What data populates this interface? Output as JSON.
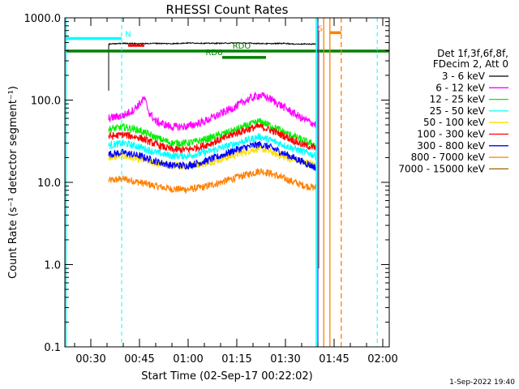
{
  "chart_data": {
    "type": "line",
    "title": "RHESSI Count Rates",
    "xlabel": "Start Time (02-Sep-17 00:22:02)",
    "ylabel": "Count Rate (s⁻¹ detector segment⁻¹)",
    "yscale": "log",
    "ylim": [
      0.1,
      1000
    ],
    "xlim_minutes": [
      22.0,
      122.0
    ],
    "grid": false,
    "legend_position": "right",
    "yticks": [
      {
        "value": 1000,
        "label": "1000.0"
      },
      {
        "value": 100,
        "label": "100.0"
      },
      {
        "value": 10,
        "label": "10.0"
      },
      {
        "value": 1,
        "label": "1.0"
      },
      {
        "value": 0.1,
        "label": "0.1"
      }
    ],
    "xticks": [
      {
        "minutes": 30,
        "label": "00:30"
      },
      {
        "minutes": 45,
        "label": "00:45"
      },
      {
        "minutes": 60,
        "label": "01:00"
      },
      {
        "minutes": 75,
        "label": "01:15"
      },
      {
        "minutes": 90,
        "label": "01:30"
      },
      {
        "minutes": 105,
        "label": "01:45"
      },
      {
        "minutes": 120,
        "label": "02:00"
      }
    ],
    "legend_header": [
      "Det 1f,3f,6f,8f,",
      "FDecim 2, Att 0"
    ],
    "series": [
      {
        "name": "3 - 6 keV",
        "color": "#000000",
        "x": [
          35.5,
          36,
          40,
          45,
          50,
          55,
          60,
          65,
          70,
          75,
          80,
          85,
          90,
          92,
          94,
          99.5
        ],
        "y": [
          480,
          480,
          490,
          485,
          490,
          485,
          495,
          490,
          490,
          495,
          490,
          485,
          490,
          480,
          480,
          480
        ]
      },
      {
        "name": "6 - 12 keV",
        "color": "#ff00ff",
        "x": [
          35.5,
          40,
          43,
          45,
          46.5,
          48,
          50,
          55,
          60,
          65,
          70,
          75,
          78,
          82,
          85,
          90,
          95,
          99.5
        ],
        "y": [
          60,
          65,
          75,
          90,
          105,
          70,
          55,
          47,
          48,
          55,
          68,
          85,
          100,
          115,
          105,
          80,
          60,
          50
        ]
      },
      {
        "name": "12 - 25 keV",
        "color": "#00ee00",
        "x": [
          35.5,
          40,
          45,
          50,
          55,
          60,
          65,
          70,
          75,
          80,
          82,
          85,
          90,
          95,
          99.5
        ],
        "y": [
          44,
          47,
          43,
          35,
          30,
          30,
          33,
          38,
          44,
          52,
          55,
          50,
          40,
          33,
          28
        ]
      },
      {
        "name": "25 - 50 keV",
        "color": "#00ffff",
        "x": [
          35.5,
          40,
          45,
          50,
          55,
          60,
          65,
          70,
          75,
          80,
          82,
          85,
          90,
          95,
          99.5
        ],
        "y": [
          28,
          30,
          27,
          23,
          21,
          21,
          23,
          26,
          30,
          34,
          36,
          33,
          28,
          24,
          21
        ]
      },
      {
        "name": "50 - 100 keV",
        "color": "#ffdd00",
        "x": [
          35.5,
          40,
          45,
          50,
          55,
          60,
          65,
          70,
          75,
          80,
          82,
          85,
          90,
          95,
          99.5
        ],
        "y": [
          20,
          21,
          19,
          17,
          16,
          16,
          17,
          19,
          22,
          25,
          26,
          24,
          20,
          18,
          16
        ]
      },
      {
        "name": "100 - 300 keV",
        "color": "#ff0000",
        "x": [
          35.5,
          40,
          45,
          50,
          55,
          60,
          65,
          70,
          75,
          80,
          82,
          85,
          90,
          95,
          99.5
        ],
        "y": [
          36,
          38,
          35,
          29,
          25,
          25,
          28,
          33,
          40,
          46,
          48,
          44,
          36,
          29,
          26
        ]
      },
      {
        "name": "300 - 800 keV",
        "color": "#0000ff",
        "x": [
          35.5,
          40,
          45,
          50,
          55,
          60,
          65,
          70,
          75,
          80,
          82,
          85,
          90,
          95,
          99.5
        ],
        "y": [
          22,
          23,
          21,
          18,
          16,
          16,
          18,
          21,
          25,
          28,
          29,
          27,
          22,
          18,
          15
        ]
      },
      {
        "name": "800 - 7000 keV",
        "color": "#ff8000",
        "x": [
          35.5,
          40,
          45,
          50,
          55,
          60,
          65,
          70,
          75,
          80,
          82,
          85,
          90,
          95,
          99.5
        ],
        "y": [
          10.5,
          11,
          10,
          9,
          8.3,
          8.2,
          8.8,
          10,
          11.5,
          13,
          13.8,
          13,
          11,
          9.3,
          8.5
        ]
      },
      {
        "name": "7000 - 15000 keV",
        "color": "#996600",
        "x": [],
        "y": []
      }
    ],
    "annotations": [
      {
        "text": "N",
        "color": "#00ffff",
        "type": "attenuator",
        "start_minutes": 22.0,
        "end_minutes": 39.5,
        "level": 560
      },
      {
        "text": "S",
        "color": "#ff8000",
        "type": "saa",
        "start_minutes": 103.7,
        "end_minutes": 107.2,
        "level": 660
      },
      {
        "text": "RDO",
        "color": "#008000",
        "type": "decimation",
        "start_minutes": 22.0,
        "end_minutes": 122.0,
        "level": 395
      },
      {
        "text": "RD6",
        "color": "#008000",
        "type": "decimation",
        "start_minutes": 70.5,
        "end_minutes": 84.0,
        "level": 330
      }
    ]
  },
  "timestamp": "1-Sep-2022 19:40"
}
